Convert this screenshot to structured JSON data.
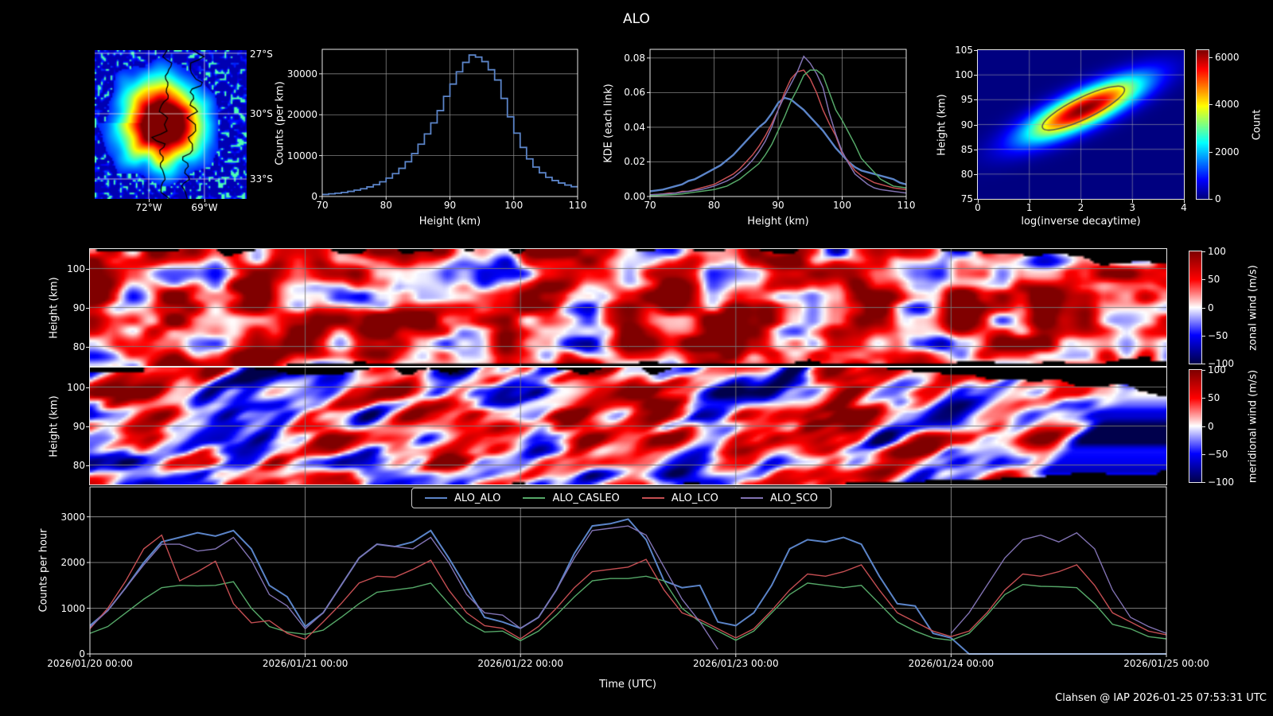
{
  "title": "ALO",
  "footer": "Clahsen @ IAP 2026-01-25 07:53:31 UTC",
  "colors": {
    "background": "#000000",
    "text": "#ffffff",
    "grid": "#9a9a9a",
    "spine": "#e8e8e8",
    "blue": "#5b84c8",
    "green": "#55a868",
    "red": "#c44e52",
    "purple": "#8172b2"
  },
  "chart_data": [
    {
      "id": "coverage_map",
      "type": "heatmap",
      "colormap": "jet",
      "xticks": [
        "72°W",
        "69°W"
      ],
      "yticks_right": [
        "27°S",
        "30°S",
        "33°S"
      ]
    },
    {
      "id": "height_histogram",
      "type": "bar",
      "xlabel": "Height (km)",
      "ylabel": "Counts (per km)",
      "xticks": [
        70,
        80,
        90,
        100,
        110
      ],
      "yticks": [
        0,
        10000,
        20000,
        30000
      ],
      "xlim": [
        70,
        110
      ],
      "ylim": [
        0,
        36000
      ],
      "bin_start": 70,
      "bin_width": 1,
      "values": [
        500,
        650,
        800,
        1000,
        1250,
        1550,
        1900,
        2350,
        2900,
        3600,
        4500,
        5600,
        6900,
        8500,
        10500,
        12800,
        15300,
        18000,
        21000,
        24500,
        27500,
        30500,
        32800,
        34600,
        34100,
        33000,
        31000,
        28500,
        24000,
        19500,
        15500,
        12000,
        9200,
        7200,
        5800,
        4700,
        3900,
        3300,
        2800,
        2400
      ]
    },
    {
      "id": "kde_each_link",
      "type": "line",
      "xlabel": "Height (km)",
      "ylabel": "KDE (each link)",
      "xticks": [
        70,
        80,
        90,
        100,
        110
      ],
      "ytick_labels": [
        "0.00",
        "0.02",
        "0.04",
        "0.06",
        "0.08"
      ],
      "yticks": [
        0,
        0.02,
        0.04,
        0.06,
        0.08
      ],
      "xlim": [
        70,
        110
      ],
      "ylim": [
        0,
        0.085
      ],
      "x_start": 70,
      "x_step": 1,
      "series": [
        {
          "name": "ALO_ALO",
          "color": "blue",
          "values": [
            0.003,
            0.0035,
            0.004,
            0.005,
            0.006,
            0.007,
            0.009,
            0.01,
            0.012,
            0.014,
            0.016,
            0.018,
            0.021,
            0.024,
            0.028,
            0.032,
            0.036,
            0.04,
            0.043,
            0.048,
            0.054,
            0.057,
            0.056,
            0.053,
            0.05,
            0.046,
            0.042,
            0.038,
            0.033,
            0.028,
            0.024,
            0.02,
            0.017,
            0.015,
            0.014,
            0.013,
            0.012,
            0.011,
            0.01,
            0.008,
            0.007
          ]
        },
        {
          "name": "ALO_LCO",
          "color": "red",
          "values": [
            0.001,
            0.0012,
            0.0015,
            0.002,
            0.002,
            0.003,
            0.003,
            0.004,
            0.005,
            0.006,
            0.007,
            0.009,
            0.011,
            0.013,
            0.016,
            0.02,
            0.024,
            0.029,
            0.035,
            0.042,
            0.05,
            0.06,
            0.068,
            0.072,
            0.073,
            0.068,
            0.06,
            0.05,
            0.042,
            0.035,
            0.025,
            0.02,
            0.015,
            0.012,
            0.01,
            0.008,
            0.007,
            0.006,
            0.005,
            0.0045,
            0.004
          ]
        },
        {
          "name": "ALO_SCO",
          "color": "purple",
          "values": [
            0.001,
            0.0012,
            0.0014,
            0.0016,
            0.002,
            0.0025,
            0.003,
            0.0035,
            0.004,
            0.005,
            0.006,
            0.0075,
            0.009,
            0.011,
            0.014,
            0.017,
            0.021,
            0.026,
            0.032,
            0.04,
            0.05,
            0.058,
            0.065,
            0.072,
            0.081,
            0.077,
            0.071,
            0.063,
            0.048,
            0.036,
            0.026,
            0.019,
            0.013,
            0.01,
            0.007,
            0.005,
            0.004,
            0.0035,
            0.003,
            0.0025,
            0.002
          ]
        },
        {
          "name": "ALO_CASLEO",
          "color": "green",
          "values": [
            0.0005,
            0.0006,
            0.0008,
            0.001,
            0.0012,
            0.0015,
            0.002,
            0.0025,
            0.003,
            0.0035,
            0.004,
            0.005,
            0.006,
            0.008,
            0.01,
            0.013,
            0.016,
            0.019,
            0.024,
            0.03,
            0.038,
            0.046,
            0.055,
            0.062,
            0.07,
            0.073,
            0.073,
            0.07,
            0.06,
            0.05,
            0.044,
            0.037,
            0.03,
            0.022,
            0.018,
            0.014,
            0.01,
            0.008,
            0.006,
            0.0055,
            0.005
          ]
        }
      ]
    },
    {
      "id": "decay_heatmap",
      "type": "heatmap",
      "colormap": "jet",
      "xlabel": "log(inverse decaytime)",
      "ylabel": "Height (km)",
      "xticks": [
        0,
        1,
        2,
        3,
        4
      ],
      "yticks": [
        75,
        80,
        85,
        90,
        95,
        100,
        105
      ],
      "xlim": [
        0,
        4
      ],
      "ylim": [
        75,
        105
      ],
      "peak": {
        "x": 2.05,
        "height_km": 93.3
      },
      "colorbar": {
        "label": "Count",
        "ticks": [
          0,
          2000,
          4000,
          6000
        ],
        "vmin": 0,
        "vmax": 6300
      }
    },
    {
      "id": "zonal_wind",
      "type": "heatmap",
      "colormap": "seismic",
      "ylabel": "Height (km)",
      "yticks": [
        80,
        90,
        100
      ],
      "ylim": [
        75,
        105
      ],
      "colorbar": {
        "label": "zonal wind (m/s)",
        "ticks": [
          "100",
          "50",
          "0",
          "−50",
          "−100"
        ],
        "vmin": -100,
        "vmax": 100
      }
    },
    {
      "id": "meridional_wind",
      "type": "heatmap",
      "colormap": "seismic",
      "ylabel": "Height (km)",
      "yticks": [
        80,
        90,
        100
      ],
      "ylim": [
        75,
        105
      ],
      "colorbar": {
        "label": "meridional wind (m/s)",
        "ticks": [
          "100",
          "50",
          "0",
          "−50",
          "−100"
        ],
        "vmin": -100,
        "vmax": 100
      }
    },
    {
      "id": "counts_per_hour",
      "type": "line",
      "xlabel": "Time (UTC)",
      "ylabel": "Counts per hour",
      "xtick_labels": [
        "2026/01/20 00:00",
        "2026/01/21 00:00",
        "2026/01/22 00:00",
        "2026/01/23 00:00",
        "2026/01/24 00:00",
        "2026/01/25 00:00"
      ],
      "yticks": [
        0,
        1000,
        2000,
        3000
      ],
      "ylim": [
        0,
        3655
      ],
      "hours_start": 0,
      "hours_step": 2,
      "hours_end": 120,
      "legend": [
        "ALO_ALO",
        "ALO_CASLEO",
        "ALO_LCO",
        "ALO_SCO"
      ],
      "series": [
        {
          "name": "ALO_ALO",
          "color": "blue",
          "values": [
            620,
            950,
            1450,
            2000,
            2450,
            2550,
            2650,
            2580,
            2700,
            2300,
            1500,
            1250,
            600,
            900,
            1500,
            2100,
            2400,
            2350,
            2450,
            2700,
            2100,
            1450,
            800,
            700,
            560,
            800,
            1400,
            2200,
            2800,
            2850,
            2950,
            2500,
            1600,
            1450,
            1500,
            700,
            620,
            900,
            1500,
            2300,
            2500,
            2450,
            2550,
            2400,
            1700,
            1100,
            1050,
            450,
            350,
            0,
            0,
            0,
            0,
            0,
            0,
            0,
            0,
            0,
            0,
            0,
            0
          ]
        },
        {
          "name": "ALO_CASLEO",
          "color": "green",
          "values": [
            450,
            600,
            900,
            1200,
            1450,
            1500,
            1490,
            1500,
            1580,
            1000,
            600,
            480,
            430,
            520,
            800,
            1100,
            1350,
            1400,
            1450,
            1550,
            1100,
            700,
            480,
            500,
            290,
            500,
            850,
            1250,
            1600,
            1650,
            1650,
            1700,
            1600,
            1000,
            700,
            500,
            300,
            500,
            900,
            1300,
            1550,
            1500,
            1450,
            1500,
            1100,
            700,
            500,
            350,
            300,
            450,
            850,
            1300,
            1520,
            1480,
            1470,
            1450,
            1100,
            650,
            550,
            380,
            330
          ]
        },
        {
          "name": "ALO_LCO",
          "color": "red",
          "values": [
            550,
            1000,
            1600,
            2300,
            2600,
            1600,
            1800,
            2030,
            1100,
            680,
            730,
            450,
            320,
            700,
            1100,
            1550,
            1700,
            1680,
            1850,
            2050,
            1400,
            900,
            620,
            560,
            330,
            600,
            1000,
            1450,
            1800,
            1850,
            1900,
            2070,
            1400,
            900,
            750,
            550,
            350,
            550,
            950,
            1400,
            1750,
            1700,
            1800,
            1950,
            1400,
            900,
            700,
            500,
            380,
            500,
            900,
            1400,
            1750,
            1700,
            1800,
            1950,
            1500,
            900,
            700,
            500,
            420
          ]
        },
        {
          "name": "ALO_SCO",
          "color": "purple",
          "values": [
            580,
            950,
            1450,
            1950,
            2400,
            2400,
            2250,
            2300,
            2550,
            2050,
            1300,
            1050,
            550,
            900,
            1500,
            2100,
            2400,
            2350,
            2300,
            2550,
            2000,
            1300,
            900,
            850,
            560,
            800,
            1400,
            2100,
            2700,
            2750,
            2800,
            2600,
            1900,
            1200,
            700,
            100,
            null,
            null,
            null,
            null,
            null,
            null,
            null,
            null,
            null,
            null,
            null,
            null,
            450,
            900,
            1500,
            2100,
            2500,
            2600,
            2450,
            2650,
            2300,
            1400,
            800,
            600,
            450
          ]
        }
      ]
    }
  ]
}
